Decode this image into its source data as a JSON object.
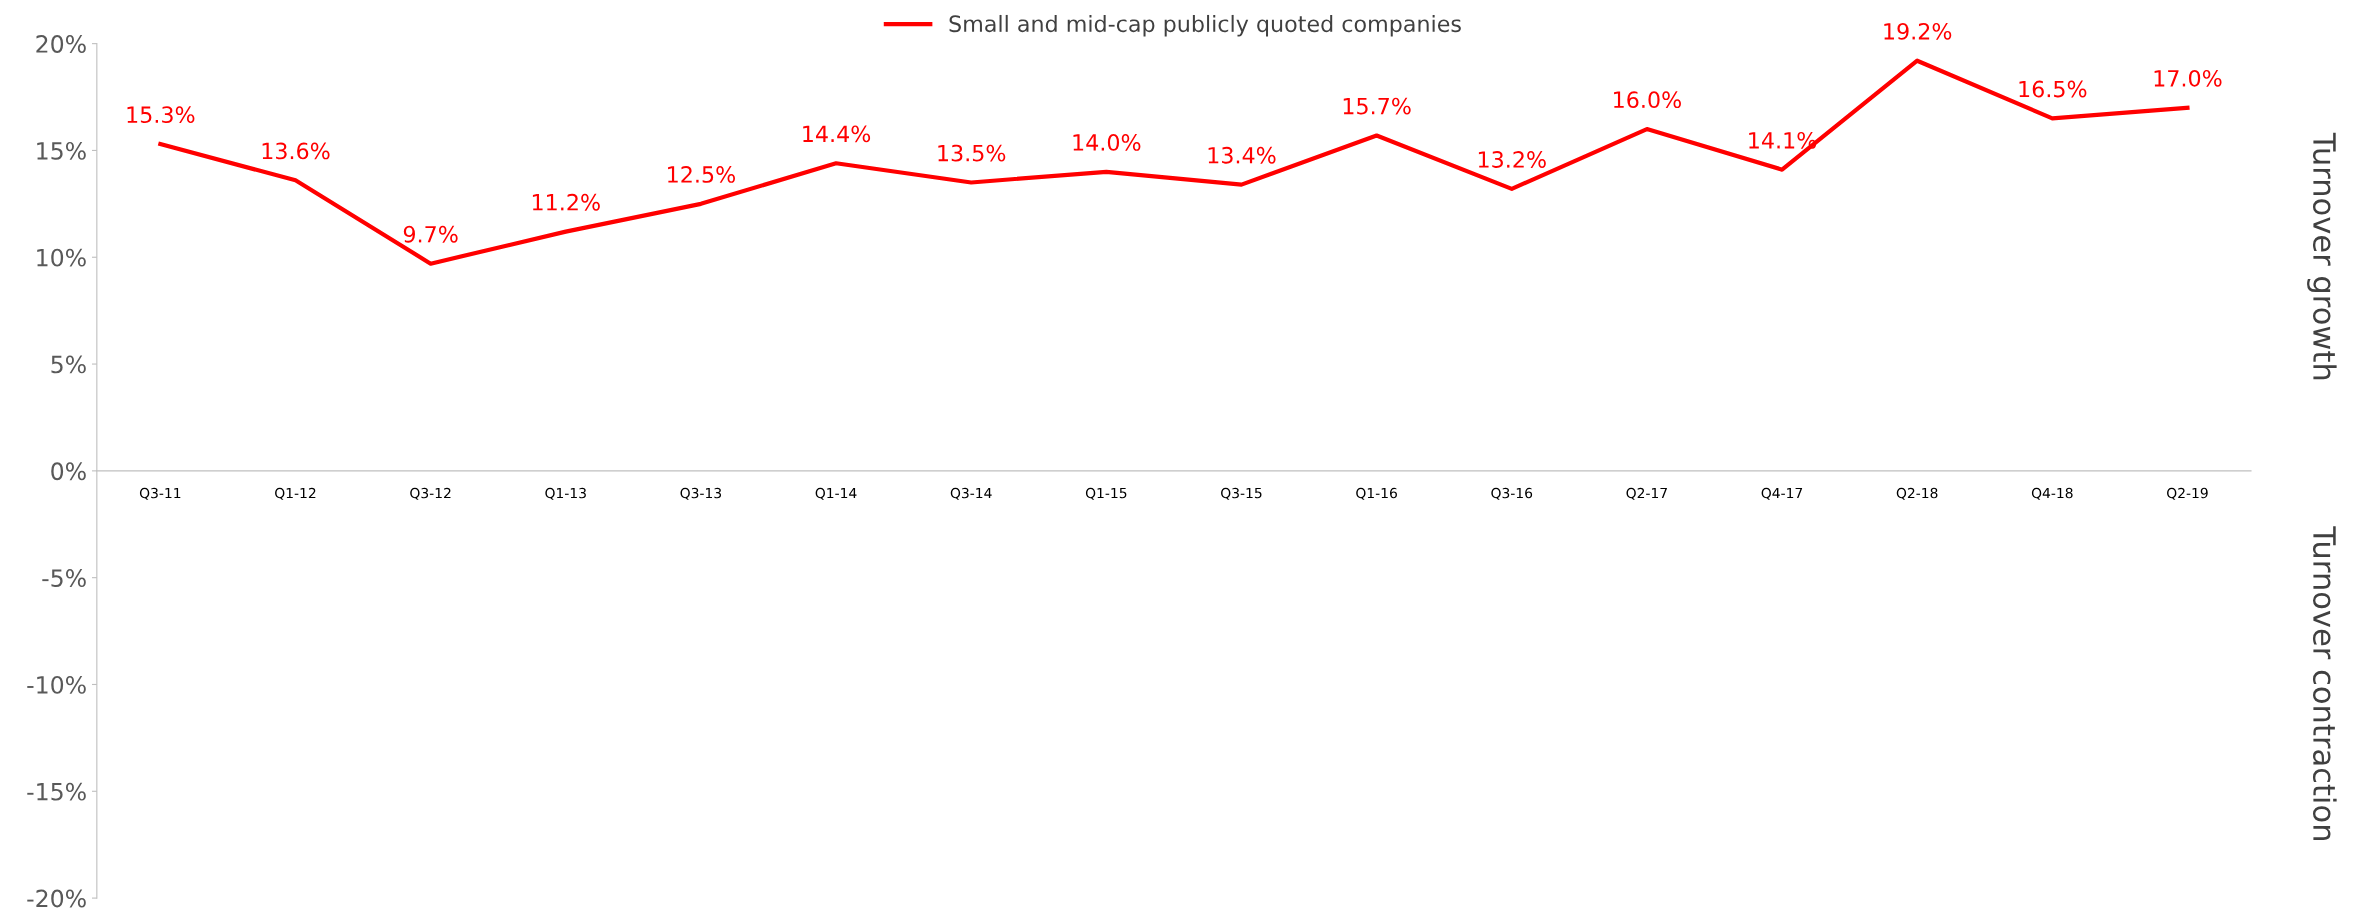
{
  "chart_data": {
    "type": "line",
    "categories": [
      "Q3-11",
      "Q1-12",
      "Q3-12",
      "Q1-13",
      "Q3-13",
      "Q1-14",
      "Q3-14",
      "Q1-15",
      "Q3-15",
      "Q1-16",
      "Q3-16",
      "Q2-17",
      "Q4-17",
      "Q2-18",
      "Q4-18",
      "Q2-19"
    ],
    "series": [
      {
        "name": "Small and mid-cap publicly quoted companies",
        "color": "#ff0000",
        "values": [
          15.3,
          13.6,
          9.7,
          11.2,
          12.5,
          14.4,
          13.5,
          14.0,
          13.4,
          15.7,
          13.2,
          16.0,
          14.1,
          19.2,
          16.5,
          17.0
        ],
        "value_labels": [
          "15.3%",
          "13.6%",
          "9.7%",
          "11.2%",
          "12.5%",
          "14.4%",
          "13.5%",
          "14.0%",
          "13.4%",
          "15.7%",
          "13.2%",
          "16.0%",
          "14.1%",
          "19.2%",
          "16.5%",
          "17.0%"
        ]
      }
    ],
    "ylim": [
      -20,
      20
    ],
    "yticks": [
      {
        "value": -20,
        "label": "-20%"
      },
      {
        "value": -15,
        "label": "-15%"
      },
      {
        "value": -10,
        "label": "-10%"
      },
      {
        "value": -5,
        "label": "-5%"
      },
      {
        "value": 0,
        "label": "0%"
      },
      {
        "value": 5,
        "label": "5%"
      },
      {
        "value": 10,
        "label": "10%"
      },
      {
        "value": 15,
        "label": "15%"
      },
      {
        "value": 20,
        "label": "20%"
      }
    ],
    "annotations": [
      "Turnover growth",
      "Turnover contraction"
    ],
    "legend": "top",
    "grid": false,
    "marker": "none",
    "line_style": "solid"
  }
}
